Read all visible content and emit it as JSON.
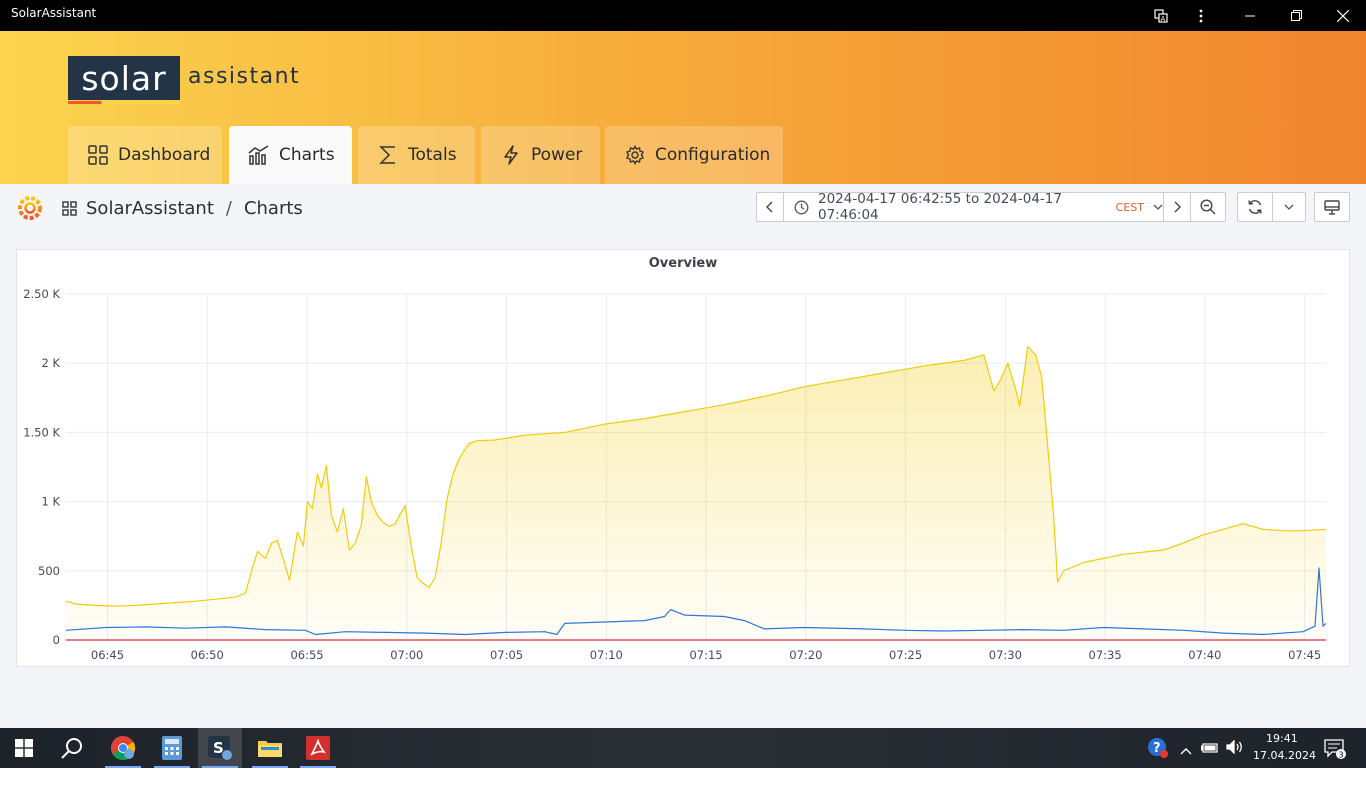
{
  "window": {
    "title": "SolarAssistant"
  },
  "logo": {
    "box_text": "solar",
    "text": "assistant"
  },
  "tabs": [
    {
      "label": "Dashboard",
      "icon": "grid-icon"
    },
    {
      "label": "Charts",
      "icon": "chart-icon"
    },
    {
      "label": "Totals",
      "icon": "sigma-icon"
    },
    {
      "label": "Power",
      "icon": "bolt-icon"
    },
    {
      "label": "Configuration",
      "icon": "gear-icon"
    }
  ],
  "breadcrumb": {
    "root": "SolarAssistant",
    "separator": "/",
    "current": "Charts"
  },
  "timepicker": {
    "range": "2024-04-17 06:42:55 to 2024-04-17 07:46:04",
    "timezone": "CEST"
  },
  "panel": {
    "title": "Overview"
  },
  "chart_data": {
    "type": "line",
    "title": "Overview",
    "y_ticks": [
      "0",
      "500",
      "1 K",
      "1.50 K",
      "2 K",
      "2.50 K"
    ],
    "ylim": [
      0,
      2500
    ],
    "x_ticks": [
      "06:45",
      "06:50",
      "06:55",
      "07:00",
      "07:05",
      "07:10",
      "07:15",
      "07:20",
      "07:25",
      "07:30",
      "07:35",
      "07:40",
      "07:45"
    ],
    "x_tick_minutes": [
      2.08,
      7.08,
      12.08,
      17.08,
      22.08,
      27.08,
      32.08,
      37.08,
      42.08,
      47.08,
      52.08,
      57.08,
      62.08
    ],
    "xlim": [
      0,
      63.15
    ],
    "grid": true,
    "series": [
      {
        "color": "#f2cc0c",
        "fill": true,
        "points": [
          [
            0,
            280
          ],
          [
            0.5,
            260
          ],
          [
            1.5,
            250
          ],
          [
            2.5,
            245
          ],
          [
            3.5,
            250
          ],
          [
            4.5,
            260
          ],
          [
            5.5,
            270
          ],
          [
            6.5,
            280
          ],
          [
            7.5,
            295
          ],
          [
            8.5,
            310
          ],
          [
            9,
            340
          ],
          [
            9.3,
            500
          ],
          [
            9.6,
            640
          ],
          [
            10,
            590
          ],
          [
            10.3,
            700
          ],
          [
            10.6,
            720
          ],
          [
            10.9,
            580
          ],
          [
            11.2,
            430
          ],
          [
            11.6,
            780
          ],
          [
            11.9,
            680
          ],
          [
            12.1,
            1000
          ],
          [
            12.35,
            950
          ],
          [
            12.6,
            1200
          ],
          [
            12.8,
            1100
          ],
          [
            13.05,
            1260
          ],
          [
            13.3,
            900
          ],
          [
            13.6,
            780
          ],
          [
            13.9,
            950
          ],
          [
            14.2,
            650
          ],
          [
            14.5,
            700
          ],
          [
            14.8,
            830
          ],
          [
            15.05,
            1180
          ],
          [
            15.3,
            1000
          ],
          [
            15.6,
            900
          ],
          [
            15.9,
            850
          ],
          [
            16.2,
            820
          ],
          [
            16.5,
            840
          ],
          [
            16.8,
            920
          ],
          [
            17,
            970
          ],
          [
            17.3,
            680
          ],
          [
            17.6,
            450
          ],
          [
            17.9,
            410
          ],
          [
            18.2,
            380
          ],
          [
            18.5,
            450
          ],
          [
            18.8,
            700
          ],
          [
            19.1,
            1020
          ],
          [
            19.4,
            1200
          ],
          [
            19.7,
            1310
          ],
          [
            20.2,
            1420
          ],
          [
            20.6,
            1440
          ],
          [
            21.5,
            1445
          ],
          [
            23,
            1480
          ],
          [
            25,
            1500
          ],
          [
            27,
            1560
          ],
          [
            29,
            1600
          ],
          [
            31,
            1650
          ],
          [
            33,
            1700
          ],
          [
            35,
            1760
          ],
          [
            37,
            1830
          ],
          [
            39,
            1880
          ],
          [
            41,
            1930
          ],
          [
            43,
            1980
          ],
          [
            45,
            2020
          ],
          [
            46,
            2060
          ],
          [
            46.5,
            1800
          ],
          [
            46.8,
            1870
          ],
          [
            47.2,
            2000
          ],
          [
            47.6,
            1810
          ],
          [
            47.8,
            1690
          ],
          [
            48.2,
            2120
          ],
          [
            48.6,
            2060
          ],
          [
            48.9,
            1900
          ],
          [
            49.2,
            1400
          ],
          [
            49.5,
            900
          ],
          [
            49.7,
            420
          ],
          [
            50,
            500
          ],
          [
            51,
            560
          ],
          [
            53,
            620
          ],
          [
            55,
            650
          ],
          [
            56,
            700
          ],
          [
            57,
            760
          ],
          [
            58,
            800
          ],
          [
            59,
            840
          ],
          [
            60,
            800
          ],
          [
            61,
            790
          ],
          [
            62,
            790
          ],
          [
            63.15,
            800
          ]
        ]
      },
      {
        "color": "#3274d9",
        "fill": false,
        "points": [
          [
            0,
            70
          ],
          [
            2,
            90
          ],
          [
            4,
            95
          ],
          [
            6,
            85
          ],
          [
            8,
            95
          ],
          [
            10,
            75
          ],
          [
            12,
            70
          ],
          [
            12.5,
            40
          ],
          [
            14,
            60
          ],
          [
            16,
            55
          ],
          [
            18,
            50
          ],
          [
            20,
            40
          ],
          [
            22,
            55
          ],
          [
            24,
            60
          ],
          [
            24.6,
            40
          ],
          [
            25,
            120
          ],
          [
            27,
            130
          ],
          [
            29,
            140
          ],
          [
            30,
            170
          ],
          [
            30.3,
            220
          ],
          [
            31,
            180
          ],
          [
            33,
            170
          ],
          [
            34,
            140
          ],
          [
            35,
            80
          ],
          [
            37,
            90
          ],
          [
            40,
            80
          ],
          [
            42,
            70
          ],
          [
            44,
            65
          ],
          [
            46,
            70
          ],
          [
            48,
            75
          ],
          [
            50,
            70
          ],
          [
            52,
            90
          ],
          [
            54,
            80
          ],
          [
            56,
            70
          ],
          [
            58,
            50
          ],
          [
            60,
            40
          ],
          [
            62,
            60
          ],
          [
            62.6,
            100
          ],
          [
            62.8,
            520
          ],
          [
            63,
            100
          ],
          [
            63.15,
            120
          ]
        ]
      },
      {
        "color": "#e02f44",
        "fill": false,
        "points": [
          [
            0,
            0
          ],
          [
            63.15,
            0
          ]
        ]
      }
    ]
  }
}
